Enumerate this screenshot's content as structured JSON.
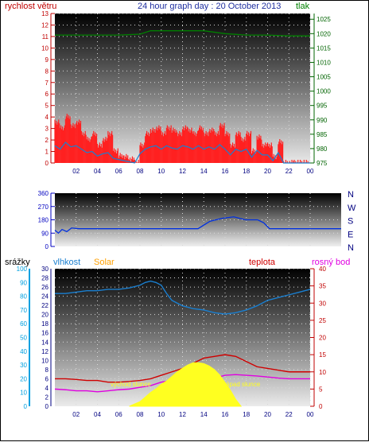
{
  "header": {
    "title": "24 hour graph day : 20 October 2013",
    "left_label": "rychlost větru",
    "right_label": "tlak"
  },
  "colors": {
    "wind_speed": "#e00000",
    "wind_gust": "#ff2020",
    "wind_avg": "#1a7fd0",
    "pressure": "#008000",
    "direction": "#0030e0",
    "humidity": "#1a7fd0",
    "temperature": "#d00000",
    "dewpoint": "#e000e0",
    "solar": "#ffff20",
    "rain_axis": "#00a0e0",
    "solar_label": "#ffa000",
    "title": "#2030a0",
    "tick_red": "#c00000",
    "tick_green": "#006400",
    "tick_blue": "#0000c0"
  },
  "chart_data": [
    {
      "type": "line",
      "name": "wind-pressure",
      "x_ticks": [
        "02",
        "04",
        "06",
        "08",
        "10",
        "12",
        "14",
        "16",
        "18",
        "20",
        "22",
        "00"
      ],
      "y_left": {
        "label": "rychlost větru",
        "ticks": [
          0,
          1,
          2,
          3,
          4,
          5,
          6,
          7,
          8,
          9,
          10,
          11,
          12,
          13
        ],
        "range": [
          0,
          13
        ]
      },
      "y_right": {
        "label": "tlak",
        "ticks": [
          975,
          980,
          985,
          990,
          995,
          1000,
          1005,
          1010,
          1015,
          1020,
          1025
        ],
        "range": [
          975,
          1027
        ]
      },
      "series": [
        {
          "color_key": "wind_gust",
          "x": [
            0,
            0.5,
            1,
            1.5,
            2,
            2.5,
            3,
            3.5,
            4,
            4.5,
            5,
            5.5,
            6,
            6.5,
            7,
            7.5,
            8,
            8.5,
            9,
            9.5,
            10,
            10.5,
            11,
            11.5,
            12,
            12.5,
            13,
            13.5,
            14,
            14.5,
            15,
            15.5,
            16,
            16.5,
            17,
            17.5,
            18,
            18.5,
            19,
            19.5,
            20,
            20.5,
            21,
            21.5,
            22,
            22.5,
            23,
            23.5,
            24
          ],
          "values": [
            3.5,
            3.0,
            4.0,
            3.2,
            3.5,
            2.5,
            2.0,
            2.5,
            1.5,
            2.0,
            2.5,
            1.0,
            0.6,
            0.5,
            0.3,
            0.0,
            1.5,
            2.5,
            2.8,
            3.0,
            2.5,
            3.0,
            2.8,
            2.5,
            3.0,
            2.8,
            2.5,
            3.0,
            2.5,
            2.8,
            2.5,
            3.2,
            2.5,
            1.5,
            2.5,
            2.0,
            2.5,
            1.0,
            2.2,
            1.5,
            1.5,
            0.5,
            1.8,
            0.0,
            0.0,
            0.0,
            0.0,
            0.0,
            0.0
          ]
        },
        {
          "color_key": "wind_avg",
          "x": [
            0,
            0.5,
            1,
            1.5,
            2,
            2.5,
            3,
            3.5,
            4,
            4.5,
            5,
            5.5,
            6,
            6.5,
            7,
            7.5,
            8,
            8.5,
            9,
            9.5,
            10,
            10.5,
            11,
            11.5,
            12,
            12.5,
            13,
            13.5,
            14,
            14.5,
            15,
            15.5,
            16,
            16.5,
            17,
            17.5,
            18,
            18.5,
            19,
            19.5,
            20,
            20.5,
            21,
            21.5,
            22,
            22.5,
            23,
            23.5,
            24
          ],
          "values": [
            1.5,
            1.2,
            1.8,
            1.4,
            1.5,
            1.2,
            0.9,
            1.0,
            0.6,
            0.8,
            0.9,
            0.4,
            0.3,
            0.2,
            0.1,
            0.0,
            0.8,
            1.2,
            1.4,
            1.5,
            1.2,
            1.5,
            1.3,
            1.2,
            1.5,
            1.4,
            1.2,
            1.5,
            1.2,
            1.4,
            1.2,
            1.6,
            1.2,
            0.7,
            1.2,
            1.0,
            1.2,
            0.5,
            1.1,
            0.7,
            0.7,
            0.2,
            0.9,
            0.0,
            0.0,
            0.0,
            0.0,
            0.0,
            0.0
          ]
        },
        {
          "color_key": "pressure",
          "axis": "right",
          "x": [
            0,
            2,
            4,
            6,
            8,
            9,
            10,
            10.5,
            11,
            12,
            14,
            16,
            18,
            20,
            22,
            24
          ],
          "values": [
            1019.5,
            1019.5,
            1019.5,
            1019.5,
            1019.8,
            1021,
            1021,
            1021,
            1021,
            1021,
            1021,
            1020,
            1019.5,
            1019.5,
            1019.2,
            1019.2
          ]
        }
      ]
    },
    {
      "type": "line",
      "name": "wind-direction",
      "x_ticks": [],
      "y_left": {
        "ticks": [
          0,
          90,
          180,
          270,
          360
        ],
        "range": [
          0,
          360
        ]
      },
      "y_right": {
        "ticks": [
          "N",
          "W",
          "S",
          "E",
          "N"
        ]
      },
      "series": [
        {
          "color_key": "direction",
          "x": [
            0,
            0.3,
            0.6,
            1,
            1.4,
            2,
            3,
            4,
            6,
            8,
            10,
            12,
            13,
            14,
            15,
            16,
            17,
            17.5,
            18,
            20,
            22,
            24
          ],
          "values": [
            110,
            90,
            115,
            100,
            125,
            120,
            120,
            120,
            120,
            120,
            120,
            120,
            170,
            190,
            200,
            180,
            180,
            160,
            120,
            120,
            120,
            120
          ]
        }
      ]
    },
    {
      "type": "line",
      "name": "humidity-temperature-solar",
      "x_ticks": [
        "02",
        "04",
        "06",
        "08",
        "10",
        "12",
        "14",
        "16",
        "18",
        "20",
        "22",
        "00"
      ],
      "y_axes": [
        {
          "label": "srážky",
          "ticks": [
            0,
            10,
            20,
            30,
            40,
            50,
            60,
            70,
            80,
            90,
            100
          ],
          "range": [
            0,
            100
          ]
        },
        {
          "label": "vlhkost",
          "ticks": [
            0,
            2,
            4,
            6,
            8,
            10,
            12,
            14,
            16,
            18,
            20,
            22,
            24,
            26,
            28,
            30
          ],
          "range": [
            0,
            30
          ]
        },
        {
          "label": "teplota",
          "ticks": [
            0,
            5,
            10,
            15,
            20,
            25,
            30,
            35,
            40
          ],
          "range": [
            0,
            40
          ]
        }
      ],
      "labels": {
        "humidity": "vlhkost",
        "solar": "Solar",
        "temperature": "teplota",
        "dewpoint": "rosný bod"
      },
      "annotations": [
        "východ slunce",
        "západ slunce"
      ],
      "series": [
        {
          "color_key": "humidity",
          "axis": "humidity_pct",
          "x": [
            0,
            1,
            2,
            3,
            4,
            5,
            6,
            7,
            8,
            8.5,
            9,
            9.5,
            10,
            10.5,
            11,
            12,
            13,
            14,
            15,
            16,
            17,
            18,
            19,
            20,
            21,
            22,
            23,
            24
          ],
          "values": [
            82,
            82,
            83,
            84,
            84,
            85,
            85,
            86,
            88,
            90,
            91,
            90,
            88,
            82,
            77,
            73,
            71,
            70,
            68,
            67,
            68,
            70,
            73,
            77,
            79,
            81,
            83,
            85
          ]
        },
        {
          "color_key": "temperature",
          "axis": "temp",
          "x": [
            0,
            1,
            2,
            3,
            4,
            5,
            6,
            7,
            8,
            9,
            10,
            11,
            12,
            13,
            14,
            15,
            16,
            17,
            18,
            19,
            20,
            21,
            22,
            23,
            24
          ],
          "values": [
            8,
            8,
            7.8,
            7.5,
            7.5,
            7,
            7,
            7.2,
            7.5,
            8,
            9,
            10,
            11,
            12.5,
            14,
            14.5,
            15,
            14.5,
            13,
            11.5,
            11,
            10.5,
            10,
            10,
            10
          ]
        },
        {
          "color_key": "dewpoint",
          "axis": "temp",
          "x": [
            0,
            1,
            2,
            3,
            4,
            5,
            6,
            7,
            8,
            9,
            10,
            11,
            12,
            13,
            14,
            15,
            16,
            17,
            18,
            19,
            20,
            21,
            22,
            23,
            24
          ],
          "values": [
            5,
            4.8,
            4.5,
            4.5,
            4.2,
            4.5,
            4.8,
            5,
            5.5,
            6,
            7,
            7.5,
            7.8,
            7.8,
            8,
            8.2,
            9,
            9.2,
            9,
            8.8,
            8.5,
            8.2,
            8,
            8,
            8
          ]
        },
        {
          "color_key": "solar",
          "axis": "solar",
          "x": [
            7,
            7.5,
            8,
            8.5,
            9,
            9.5,
            10,
            10.5,
            11,
            11.5,
            12,
            12.5,
            13,
            13.5,
            14,
            14.5,
            15,
            15.5,
            16,
            16.5,
            17,
            17.5
          ],
          "values": [
            0,
            0.5,
            1,
            2,
            3,
            3.8,
            4.8,
            5.5,
            6.5,
            7.5,
            8.3,
            9,
            9.5,
            9.5,
            9.3,
            8.8,
            8,
            6.8,
            5.2,
            3.5,
            1.5,
            0
          ]
        }
      ]
    }
  ],
  "plot3": {
    "sunrise_label": "východ slunce",
    "sunset_label": "západ slunce",
    "rain_label": "srážky",
    "humidity_label": "vlhkost",
    "solar_label": "Solar",
    "temperature_label": "teplota",
    "dewpoint_label": "rosný bod"
  },
  "plot2": {
    "dir_labels": [
      "N",
      "W",
      "S",
      "E",
      "N"
    ]
  }
}
